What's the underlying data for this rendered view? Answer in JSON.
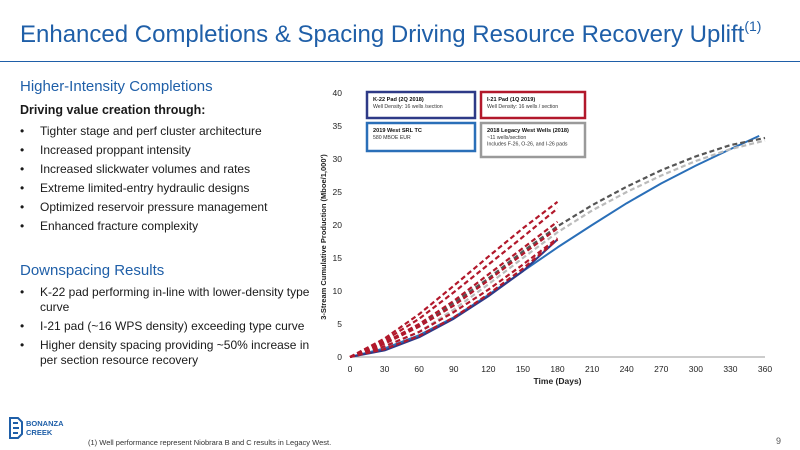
{
  "slide": {
    "title": "Enhanced Completions & Spacing Driving Resource Recovery Uplift",
    "title_sup": "(1)",
    "page_number": "9",
    "footnote": "(1)    Well performance represent Niobrara B and C results in Legacy West."
  },
  "left": {
    "section1_heading": "Higher-Intensity Completions",
    "section1_subheading": "Driving value creation through:",
    "section1_bullets": [
      "Tighter stage and perf cluster architecture",
      "Increased proppant intensity",
      "Increased slickwater volumes and rates",
      "Extreme limited-entry hydraulic designs",
      "Optimized reservoir pressure management",
      "Enhanced fracture complexity"
    ],
    "section2_heading": "Downspacing Results",
    "section2_bullets": [
      "K-22 pad performing in-line with lower-density type curve",
      "I-21 pad (~16 WPS density) exceeding type curve",
      "Higher density spacing providing ~50% increase in per section resource recovery"
    ]
  },
  "logo": {
    "line1": "BONANZA",
    "line2": "CREEK"
  },
  "colors": {
    "brand_blue": "#1f5fa8",
    "red": "#b2182b",
    "navy": "#2e3a87",
    "dark_gray": "#555555",
    "light_gray": "#bbbbbb"
  },
  "chart_data": {
    "type": "line",
    "xlabel": "Time (Days)",
    "ylabel": "3-Stream Cumulative Production (Mboe/1,000')",
    "xlim": [
      0,
      360
    ],
    "ylim": [
      0,
      40
    ],
    "x_ticks": [
      "0",
      "30",
      "60",
      "90",
      "120",
      "150",
      "180",
      "210",
      "240",
      "270",
      "300",
      "330",
      "360"
    ],
    "y_ticks": [
      "0",
      "5",
      "10",
      "15",
      "20",
      "25",
      "30",
      "35",
      "40"
    ],
    "grid": false,
    "legend_boxes": [
      {
        "title": "K-22 Pad (2Q 2018)",
        "lines": [
          "Well Density: 16 wells /section"
        ],
        "color": "#2e3a87"
      },
      {
        "title": "I-21 Pad (1Q 2019)",
        "lines": [
          "Well Density: 16 wells / section"
        ],
        "color": "#b2182b"
      },
      {
        "title": "2019 West SRL TC",
        "lines": [
          "580 MBOE EUR"
        ],
        "color": "#2a6fb8"
      },
      {
        "title": "2018 Legacy West Wells (2018)",
        "lines": [
          "~11 wells/section",
          "Includes F-26, O-26, and I-26 pads"
        ],
        "color": "#9a9a9a"
      }
    ],
    "series": [
      {
        "style": "solid",
        "color": "#2a6fb8",
        "x": [
          0,
          30,
          60,
          90,
          120,
          150,
          180,
          210,
          240,
          270,
          300,
          330,
          355
        ],
        "y": [
          0,
          1.3,
          3.3,
          6.0,
          9.4,
          13.0,
          16.6,
          20.0,
          23.3,
          26.3,
          29.0,
          31.5,
          33.5
        ]
      },
      {
        "style": "dashed",
        "color": "#555555",
        "x": [
          0,
          30,
          60,
          90,
          120,
          150,
          180,
          210,
          240,
          270,
          300,
          330,
          360
        ],
        "y": [
          0,
          2.2,
          4.8,
          8.2,
          11.9,
          16.0,
          19.8,
          23.0,
          25.8,
          28.3,
          30.4,
          32.1,
          33.2
        ]
      },
      {
        "style": "dashed",
        "color": "#bbbbbb",
        "x": [
          0,
          30,
          60,
          90,
          120,
          150,
          180,
          210,
          240,
          270,
          300,
          330,
          360
        ],
        "y": [
          0,
          1.6,
          3.8,
          7.2,
          11.0,
          15.0,
          18.9,
          22.2,
          25.0,
          27.5,
          29.7,
          31.5,
          32.8
        ]
      },
      {
        "style": "solid",
        "color": "#2e3a87",
        "x": [
          0,
          30,
          60,
          90,
          120,
          150,
          180
        ],
        "y": [
          0,
          1.0,
          3.0,
          5.8,
          9.2,
          13.0,
          17.8
        ]
      },
      {
        "style": "dashed",
        "color": "#b2182b",
        "x": [
          0,
          30,
          60,
          90,
          120,
          150,
          180
        ],
        "y": [
          0,
          2.8,
          6.5,
          10.8,
          15.2,
          19.5,
          23.5
        ]
      },
      {
        "style": "dashed",
        "color": "#b2182b",
        "x": [
          0,
          30,
          60,
          90,
          120,
          150,
          180
        ],
        "y": [
          0,
          2.5,
          5.8,
          9.8,
          14.0,
          18.2,
          22.5
        ]
      },
      {
        "style": "dashed",
        "color": "#b2182b",
        "x": [
          0,
          30,
          60,
          90,
          120,
          150,
          180
        ],
        "y": [
          0,
          2.2,
          5.0,
          8.5,
          12.5,
          16.5,
          20.5
        ]
      },
      {
        "style": "dashed",
        "color": "#b2182b",
        "x": [
          0,
          30,
          60,
          90,
          120,
          150,
          180
        ],
        "y": [
          0,
          2.0,
          4.6,
          7.8,
          11.6,
          15.6,
          19.5
        ]
      },
      {
        "style": "dashed",
        "color": "#b2182b",
        "x": [
          0,
          30,
          60,
          90,
          120,
          150,
          180
        ],
        "y": [
          0,
          1.6,
          3.8,
          6.8,
          10.2,
          14.0,
          18.0
        ]
      },
      {
        "style": "dashed",
        "color": "#b2182b",
        "x": [
          0,
          30,
          60,
          90,
          120,
          150,
          180
        ],
        "y": [
          0,
          1.2,
          3.2,
          6.0,
          9.5,
          13.4,
          17.8
        ]
      }
    ]
  }
}
